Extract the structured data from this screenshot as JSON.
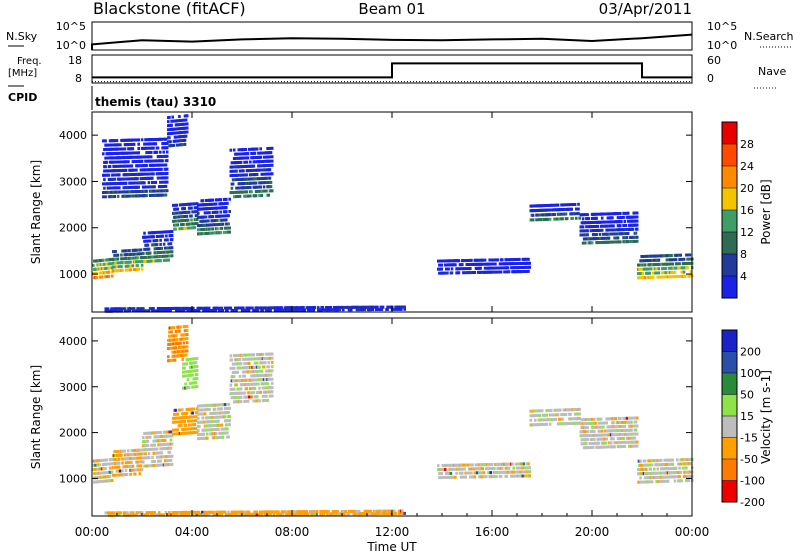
{
  "header": {
    "station": "Blackstone (fitACF)",
    "beam": "Beam 01",
    "date": "03/Apr/2011"
  },
  "panel_labels": {
    "nsky": "N.Sky",
    "nsearch": "N.Search",
    "freq_a": "Freq.",
    "freq_b": "[MHz]",
    "nave": "Nave",
    "cpid": "CPID",
    "cpid_value": "themis (tau) 3310"
  },
  "colors": {
    "axis": "#000000",
    "power_scale": [
      "#1a22e6",
      "#213a9c",
      "#2f6b52",
      "#3f9e65",
      "#f5c400",
      "#ff8a00",
      "#ff4a00",
      "#e80000"
    ],
    "velocity_scale": [
      "#ee0000",
      "#ff7a00",
      "#ffa000",
      "#bdbdbd",
      "#8fe34a",
      "#2a8a3a",
      "#2b4fa6",
      "#1a22c8"
    ]
  },
  "chart_data": [
    {
      "type": "line",
      "name_left": "N.Sky",
      "name_right": "N.Search",
      "yticks_left": [
        "10^5",
        "10^0"
      ],
      "yticks_right": [
        "10^5",
        "10^0"
      ],
      "x": [
        "00:00",
        "02:00",
        "04:00",
        "06:00",
        "08:00",
        "10:00",
        "12:00",
        "14:00",
        "16:00",
        "18:00",
        "20:00",
        "22:00",
        "00:00"
      ],
      "series": [
        {
          "values": [
            0.2,
            0.35,
            0.3,
            0.38,
            0.42,
            0.4,
            0.36,
            0.35,
            0.38,
            0.4,
            0.32,
            0.42,
            0.55
          ],
          "style": "solid"
        }
      ]
    },
    {
      "type": "line",
      "name_left": "Freq. [MHz]",
      "name_right": "Nave",
      "yticks_left": [
        "18",
        "8"
      ],
      "yticks_right": [
        "60",
        "0"
      ],
      "x_hours": [
        0,
        12,
        12,
        22,
        22,
        24
      ],
      "series": [
        {
          "values_mhz": [
            10,
            10,
            15,
            15,
            10,
            10
          ],
          "style": "solid"
        },
        {
          "values_nave": [
            3,
            3,
            3,
            3,
            3,
            3
          ],
          "style": "dotted"
        }
      ]
    },
    {
      "type": "heatmap",
      "title": "",
      "ylabel": "Slant Range [km]",
      "colorbar_label": "Power [dB]",
      "colorbar_ticks": [
        "28",
        "24",
        "20",
        "16",
        "12",
        "8",
        "4"
      ],
      "yticks": [
        "4000",
        "3000",
        "2000",
        "1000"
      ],
      "ylim": [
        180,
        4500
      ],
      "xlim_hours": [
        0,
        24
      ],
      "echo_bands": [
        {
          "t_start": 0.0,
          "t_end": 0.8,
          "r_lo": 950,
          "r_hi": 1400,
          "power": 22
        },
        {
          "t_start": 0.8,
          "t_end": 2.0,
          "r_lo": 1100,
          "r_hi": 1600,
          "power": 18
        },
        {
          "t_start": 2.0,
          "t_end": 3.2,
          "r_lo": 1300,
          "r_hi": 2000,
          "power": 14
        },
        {
          "t_start": 3.2,
          "t_end": 4.2,
          "r_lo": 2000,
          "r_hi": 2600,
          "power": 14
        },
        {
          "t_start": 4.2,
          "t_end": 5.5,
          "r_lo": 1900,
          "r_hi": 2700,
          "power": 12
        },
        {
          "t_start": 5.5,
          "t_end": 7.2,
          "r_lo": 2700,
          "r_hi": 3800,
          "power": 12
        },
        {
          "t_start": 0.4,
          "t_end": 3.0,
          "r_lo": 2700,
          "r_hi": 4000,
          "power": 6
        },
        {
          "t_start": 3.0,
          "t_end": 3.8,
          "r_lo": 3800,
          "r_hi": 4500,
          "power": 8
        },
        {
          "t_start": 13.8,
          "t_end": 17.5,
          "r_lo": 1050,
          "r_hi": 1400,
          "power": 5
        },
        {
          "t_start": 17.5,
          "t_end": 19.5,
          "r_lo": 2200,
          "r_hi": 2600,
          "power": 10
        },
        {
          "t_start": 19.5,
          "t_end": 21.8,
          "r_lo": 1700,
          "r_hi": 2400,
          "power": 12
        },
        {
          "t_start": 21.8,
          "t_end": 24.0,
          "r_lo": 950,
          "r_hi": 1500,
          "power": 20
        },
        {
          "t_start": 0.5,
          "t_end": 12.5,
          "r_lo": 230,
          "r_hi": 330,
          "power": 8
        }
      ]
    },
    {
      "type": "heatmap",
      "title": "",
      "ylabel": "Slant Range [km]",
      "colorbar_label": "Velocity [m s-1]",
      "colorbar_ticks": [
        "200",
        "100",
        "50",
        "15",
        "-15",
        "-50",
        "-100",
        "-200"
      ],
      "yticks": [
        "4000",
        "3000",
        "2000",
        "1000"
      ],
      "ylim": [
        180,
        4500
      ],
      "xlim_hours": [
        0,
        24
      ],
      "echo_bands": [
        {
          "t_start": 0.0,
          "t_end": 0.8,
          "r_lo": 950,
          "r_hi": 1500,
          "velocity": 0
        },
        {
          "t_start": 0.8,
          "t_end": 2.0,
          "r_lo": 1100,
          "r_hi": 1700,
          "velocity": -20
        },
        {
          "t_start": 2.0,
          "t_end": 3.2,
          "r_lo": 1300,
          "r_hi": 2100,
          "velocity": 0
        },
        {
          "t_start": 3.2,
          "t_end": 4.2,
          "r_lo": 2000,
          "r_hi": 2600,
          "velocity": -40
        },
        {
          "t_start": 4.2,
          "t_end": 5.5,
          "r_lo": 1900,
          "r_hi": 2700,
          "velocity": 0
        },
        {
          "t_start": 5.5,
          "t_end": 7.2,
          "r_lo": 2700,
          "r_hi": 3800,
          "velocity": 0
        },
        {
          "t_start": 3.0,
          "t_end": 3.8,
          "r_lo": 3600,
          "r_hi": 4400,
          "velocity": -60
        },
        {
          "t_start": 3.6,
          "t_end": 4.2,
          "r_lo": 3000,
          "r_hi": 3700,
          "velocity": 30
        },
        {
          "t_start": 13.8,
          "t_end": 17.5,
          "r_lo": 1050,
          "r_hi": 1400,
          "velocity": 0
        },
        {
          "t_start": 17.5,
          "t_end": 19.5,
          "r_lo": 2200,
          "r_hi": 2600,
          "velocity": 0
        },
        {
          "t_start": 19.5,
          "t_end": 21.8,
          "r_lo": 1700,
          "r_hi": 2400,
          "velocity": 0
        },
        {
          "t_start": 21.8,
          "t_end": 24.0,
          "r_lo": 950,
          "r_hi": 1500,
          "velocity": 0
        },
        {
          "t_start": 0.5,
          "t_end": 12.5,
          "r_lo": 230,
          "r_hi": 330,
          "velocity": -30
        }
      ]
    }
  ],
  "x_axis": {
    "label": "Time UT",
    "ticks": [
      "00:00",
      "04:00",
      "08:00",
      "12:00",
      "16:00",
      "20:00",
      "00:00"
    ]
  }
}
